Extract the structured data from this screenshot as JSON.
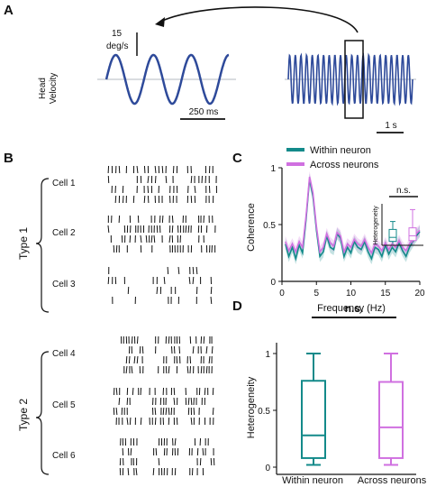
{
  "panels": [
    "A",
    "B",
    "C",
    "D"
  ],
  "panel_a": {
    "ylabel_line1": "Head",
    "ylabel_line2": "Velocity",
    "vscale_line1": "15",
    "vscale_line2": "deg/s",
    "zoom_scale": "250 ms",
    "full_scale": "1 s",
    "wave_color": "#2e4a9a"
  },
  "panel_b": {
    "groups": [
      {
        "label": "Type 1",
        "cells": [
          "Cell 1",
          "Cell 2",
          "Cell 3"
        ]
      },
      {
        "label": "Type 2",
        "cells": [
          "Cell 4",
          "Cell 5",
          "Cell 6"
        ]
      }
    ]
  },
  "colors": {
    "within": "#138a8a",
    "across": "#d070e0"
  },
  "chart_data": [
    {
      "type": "line",
      "panel": "C",
      "xlabel": "Frequency (Hz)",
      "ylabel": "Coherence",
      "xlim": [
        0,
        20
      ],
      "ylim": [
        0,
        1
      ],
      "xticks": [
        "0",
        "5",
        "10",
        "15",
        "20"
      ],
      "yticks": [
        "0",
        "0.5",
        "1"
      ],
      "legend_position": "top",
      "x": [
        0.5,
        1,
        1.5,
        2,
        2.5,
        3,
        3.5,
        4,
        4.5,
        5,
        5.5,
        6,
        6.5,
        7,
        7.5,
        8,
        8.5,
        9,
        9.5,
        10,
        10.5,
        11,
        11.5,
        12,
        12.5,
        13,
        13.5,
        14,
        14.5,
        15,
        15.5,
        16,
        16.5,
        17,
        17.5,
        18,
        18.5,
        19,
        19.5,
        20
      ],
      "series": [
        {
          "name": "Within neuron",
          "values": [
            0.33,
            0.22,
            0.3,
            0.2,
            0.32,
            0.25,
            0.55,
            0.9,
            0.75,
            0.45,
            0.22,
            0.26,
            0.4,
            0.3,
            0.28,
            0.42,
            0.38,
            0.22,
            0.3,
            0.25,
            0.35,
            0.3,
            0.28,
            0.35,
            0.26,
            0.2,
            0.3,
            0.28,
            0.22,
            0.32,
            0.24,
            0.3,
            0.26,
            0.34,
            0.27,
            0.22,
            0.3,
            0.35,
            0.4,
            0.44
          ]
        },
        {
          "name": "Across neurons",
          "values": [
            0.35,
            0.27,
            0.33,
            0.26,
            0.35,
            0.3,
            0.58,
            0.92,
            0.78,
            0.48,
            0.26,
            0.3,
            0.42,
            0.34,
            0.31,
            0.43,
            0.4,
            0.26,
            0.33,
            0.3,
            0.37,
            0.33,
            0.31,
            0.37,
            0.3,
            0.25,
            0.33,
            0.31,
            0.27,
            0.34,
            0.28,
            0.33,
            0.3,
            0.36,
            0.3,
            0.27,
            0.33,
            0.37,
            0.42,
            0.45
          ]
        }
      ],
      "inset": {
        "ylabel": "Heterogeneity",
        "sig_label": "n.s.",
        "boxes": [
          {
            "name": "Within neuron",
            "min": 0.02,
            "q1": 0.05,
            "median": 0.1,
            "q3": 0.2,
            "max": 0.3
          },
          {
            "name": "Across neurons",
            "min": 0.02,
            "q1": 0.06,
            "median": 0.12,
            "q3": 0.22,
            "max": 0.45
          }
        ]
      }
    },
    {
      "type": "box",
      "panel": "D",
      "ylabel": "Heterogeneity",
      "ylim": [
        0,
        1
      ],
      "yticks": [
        "0",
        "0.5",
        "1"
      ],
      "categories": [
        "Within neuron",
        "Across neurons"
      ],
      "sig_label": "n.s.",
      "boxes": [
        {
          "name": "Within neuron",
          "min": 0.02,
          "q1": 0.08,
          "median": 0.28,
          "q3": 0.76,
          "max": 1.0
        },
        {
          "name": "Across neurons",
          "min": 0.02,
          "q1": 0.08,
          "median": 0.35,
          "q3": 0.75,
          "max": 1.0
        }
      ]
    }
  ]
}
